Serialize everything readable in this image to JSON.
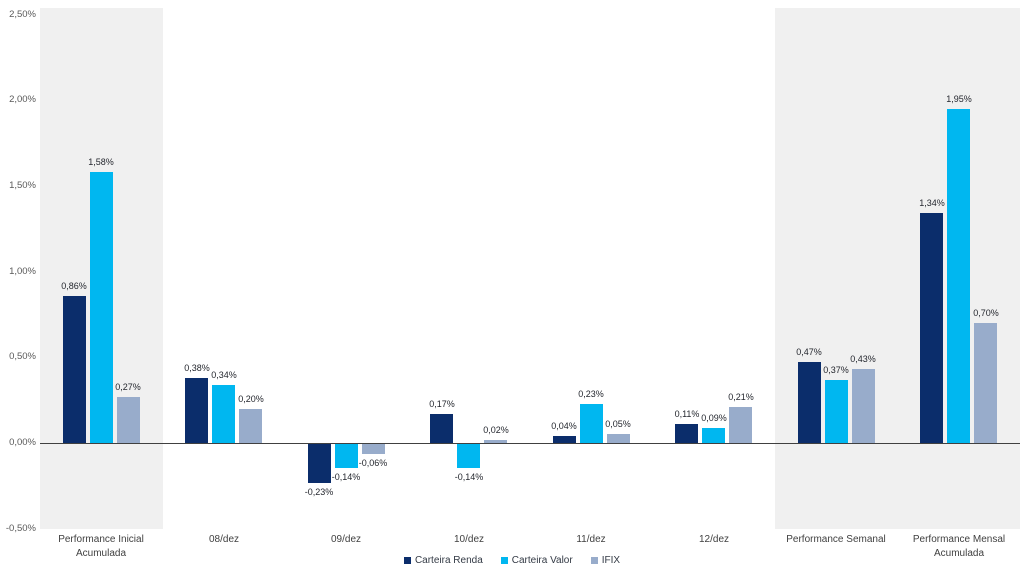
{
  "chart_data": {
    "type": "bar",
    "title": "",
    "xlabel": "",
    "ylabel": "",
    "categories": [
      "Performance Inicial Acumulada",
      "08/dez",
      "09/dez",
      "10/dez",
      "11/dez",
      "12/dez",
      "Performance Semanal",
      "Performance Mensal Acumulada"
    ],
    "series": [
      {
        "name": "Carteira Renda",
        "color": "#0b2d6b",
        "values": [
          0.86,
          0.38,
          -0.23,
          0.17,
          0.04,
          0.11,
          0.47,
          1.34
        ],
        "value_labels": [
          "0,86%",
          "0,38%",
          "-0,23%",
          "0,17%",
          "0,04%",
          "0,11%",
          "0,47%",
          "1,34%"
        ]
      },
      {
        "name": "Carteira Valor",
        "color": "#00b7f0",
        "values": [
          1.58,
          0.34,
          -0.14,
          -0.14,
          0.23,
          0.09,
          0.37,
          1.95
        ],
        "value_labels": [
          "1,58%",
          "0,34%",
          "-0,14%",
          "-0,14%",
          "0,23%",
          "0,09%",
          "0,37%",
          "1,95%"
        ]
      },
      {
        "name": "IFIX",
        "color": "#98accb",
        "values": [
          0.27,
          0.2,
          -0.06,
          0.02,
          0.05,
          0.21,
          0.43,
          0.7
        ],
        "value_labels": [
          "0,27%",
          "0,20%",
          "-0,06%",
          "0,02%",
          "0,05%",
          "0,21%",
          "0,43%",
          "0,70%"
        ]
      }
    ],
    "y_axis": {
      "tick_labels": [
        "2,50%",
        "2,00%",
        "1,50%",
        "1,00%",
        "0,50%",
        "0,00%",
        "-0,50%"
      ],
      "tick_values": [
        2.5,
        2.0,
        1.5,
        1.0,
        0.5,
        0.0,
        -0.5
      ],
      "min": -0.5,
      "max": 2.5
    },
    "legend": {
      "position": "bottom",
      "entries": [
        "Carteira Renda",
        "Carteira Valor",
        "IFIX"
      ]
    },
    "highlight_bands": {
      "color": "#f0f0f0",
      "category_index_ranges": [
        [
          0,
          0
        ],
        [
          6,
          7
        ]
      ]
    },
    "grid": false
  }
}
